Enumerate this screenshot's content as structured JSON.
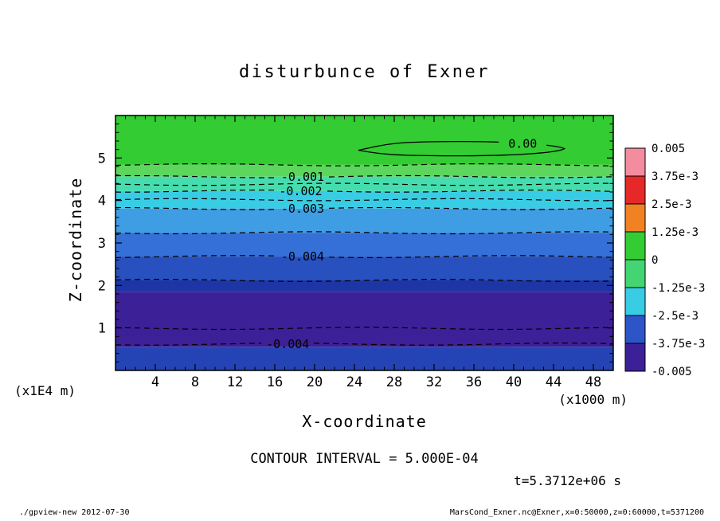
{
  "chart_data": {
    "type": "filled_contour",
    "title": "disturbunce of Exner",
    "xlabel": "X-coordinate",
    "ylabel": "Z-coordinate",
    "x_unit_left": "(x1E4 m)",
    "x_unit_right": "(x1000 m)",
    "x_range": [
      0,
      50
    ],
    "z_range": [
      0,
      6
    ],
    "x_major_ticks": [
      4,
      8,
      12,
      16,
      20,
      24,
      28,
      32,
      36,
      40,
      44,
      48
    ],
    "x_minor_step": 1,
    "z_major_ticks": [
      1,
      2,
      3,
      4,
      5
    ],
    "z_minor_step": 0.2,
    "contour_interval": "CONTOUR INTERVAL = 5.000E-04",
    "time_label": "t=5.3712e+06 s",
    "bands": [
      {
        "z_top": 6.0,
        "z_bottom": 4.84,
        "color": "#33cc33"
      },
      {
        "z_top": 4.84,
        "z_bottom": 4.56,
        "color": "#5cd65c"
      },
      {
        "z_top": 4.56,
        "z_bottom": 4.22,
        "color": "#45ddae"
      },
      {
        "z_top": 4.22,
        "z_bottom": 3.81,
        "color": "#38cde4"
      },
      {
        "z_top": 3.81,
        "z_bottom": 3.24,
        "color": "#3f9de4"
      },
      {
        "z_top": 3.24,
        "z_bottom": 2.68,
        "color": "#3470d8"
      },
      {
        "z_top": 2.68,
        "z_bottom": 2.12,
        "color": "#2850be"
      },
      {
        "z_top": 2.12,
        "z_bottom": 1.85,
        "color": "#1d35a5"
      },
      {
        "z_top": 1.85,
        "z_bottom": 0.55,
        "color": "#3c2097"
      },
      {
        "z_top": 0.55,
        "z_bottom": 0.0,
        "color": "#2443b4"
      }
    ],
    "contour_lines": [
      {
        "z": 4.84,
        "label": ""
      },
      {
        "z": 4.56,
        "label": "-0.001",
        "label_x": 18.8
      },
      {
        "z": 4.38,
        "label": ""
      },
      {
        "z": 4.22,
        "label": "-0.002",
        "label_x": 18.6
      },
      {
        "z": 4.02,
        "label": ""
      },
      {
        "z": 3.81,
        "label": "-0.003",
        "label_x": 18.8
      },
      {
        "z": 3.24,
        "label": ""
      },
      {
        "z": 2.68,
        "label": "-0.004",
        "label_x": 18.8
      },
      {
        "z": 2.12,
        "label": ""
      },
      {
        "z": 0.99,
        "label": ""
      },
      {
        "z": 0.62,
        "label": "-0.004",
        "label_x": 17.3
      }
    ],
    "closed_contour": {
      "label": "0.00",
      "x_start": 24.4,
      "x_end": 45.1,
      "z_center": 5.22,
      "label_x": 40.9
    },
    "colorbar": {
      "labels": [
        "0.005",
        "3.75e-3",
        "2.5e-3",
        "1.25e-3",
        "0",
        "-1.25e-3",
        "-2.5e-3",
        "-3.75e-3",
        "-0.005"
      ],
      "cell_colors": [
        "#f28c9e",
        "#e62828",
        "#f08223",
        "#33cc33",
        "#44d573",
        "#38cde4",
        "#2d55c8",
        "#3c2097"
      ]
    }
  },
  "footer": {
    "left": "./gpview-new  2012-07-30",
    "right": "MarsCond_Exner.nc@Exner,x=0:50000,z=0:60000,t=5371200"
  }
}
